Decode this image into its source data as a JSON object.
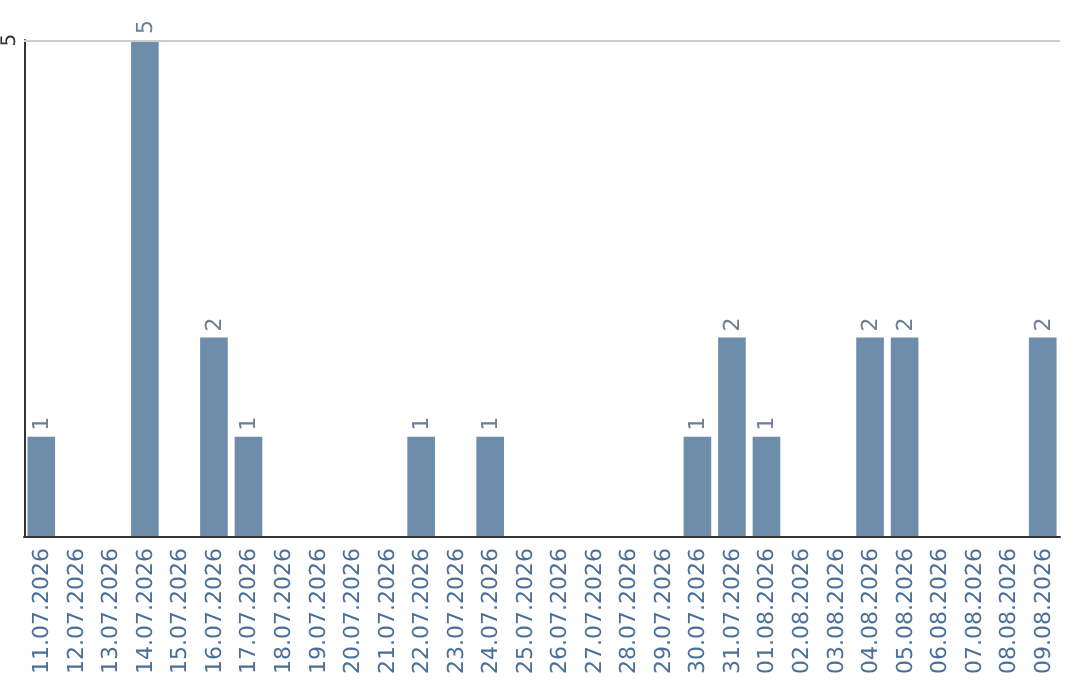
{
  "chart_data": {
    "type": "bar",
    "categories": [
      "11.07.2026",
      "12.07.2026",
      "13.07.2026",
      "14.07.2026",
      "15.07.2026",
      "16.07.2026",
      "17.07.2026",
      "18.07.2026",
      "19.07.2026",
      "20.07.2026",
      "21.07.2026",
      "22.07.2026",
      "23.07.2026",
      "24.07.2026",
      "25.07.2026",
      "26.07.2026",
      "27.07.2026",
      "28.07.2026",
      "29.07.2026",
      "30.07.2026",
      "31.07.2026",
      "01.08.2026",
      "02.08.2026",
      "03.08.2026",
      "04.08.2026",
      "05.08.2026",
      "06.08.2026",
      "07.08.2026",
      "08.08.2026",
      "09.08.2026"
    ],
    "values": [
      1,
      0,
      0,
      5,
      0,
      2,
      1,
      0,
      0,
      0,
      0,
      1,
      0,
      1,
      0,
      0,
      0,
      0,
      0,
      1,
      2,
      1,
      0,
      0,
      2,
      2,
      0,
      0,
      0,
      2
    ],
    "value_labels": [
      "1",
      null,
      null,
      "5",
      null,
      "2",
      "1",
      null,
      null,
      null,
      null,
      "1",
      null,
      "1",
      null,
      null,
      null,
      null,
      null,
      "1",
      "2",
      "1",
      null,
      null,
      "2",
      "2",
      null,
      null,
      null,
      "2"
    ],
    "color": "#6d8dab",
    "ylim": [
      0,
      5
    ],
    "yticks": [
      5
    ],
    "ref_lines": [
      {
        "axis": "y",
        "value": 5,
        "color": "#cccccc"
      }
    ]
  }
}
